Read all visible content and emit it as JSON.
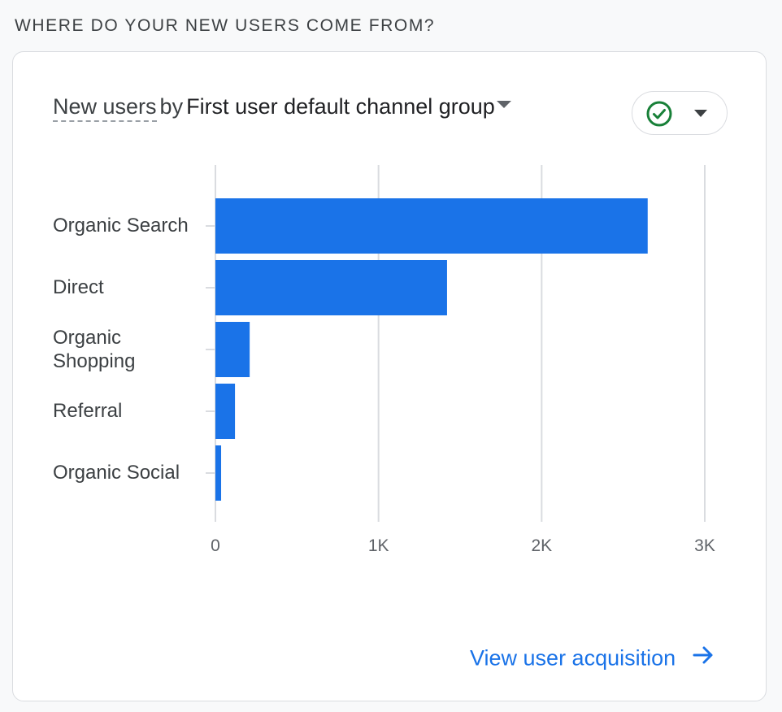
{
  "section_title": "WHERE DO YOUR NEW USERS COME FROM?",
  "card": {
    "metric": "New users",
    "by": "by",
    "dimension": "First user default channel group",
    "link_label": "View user acquisition"
  },
  "icons": {
    "compare": "check-circle-icon",
    "dropdown": "caret-down-icon",
    "link": "arrow-right-icon"
  },
  "colors": {
    "bar": "#1a73e8",
    "check": "#188038",
    "link": "#1a73e8"
  },
  "chart_data": {
    "type": "bar",
    "orientation": "horizontal",
    "categories": [
      "Organic Search",
      "Direct",
      "Organic Shopping",
      "Referral",
      "Organic Social"
    ],
    "values": [
      2650,
      1420,
      210,
      120,
      35
    ],
    "xlim": [
      0,
      3000
    ],
    "xticks": [
      "0",
      "1K",
      "2K",
      "3K"
    ],
    "grid": true
  }
}
